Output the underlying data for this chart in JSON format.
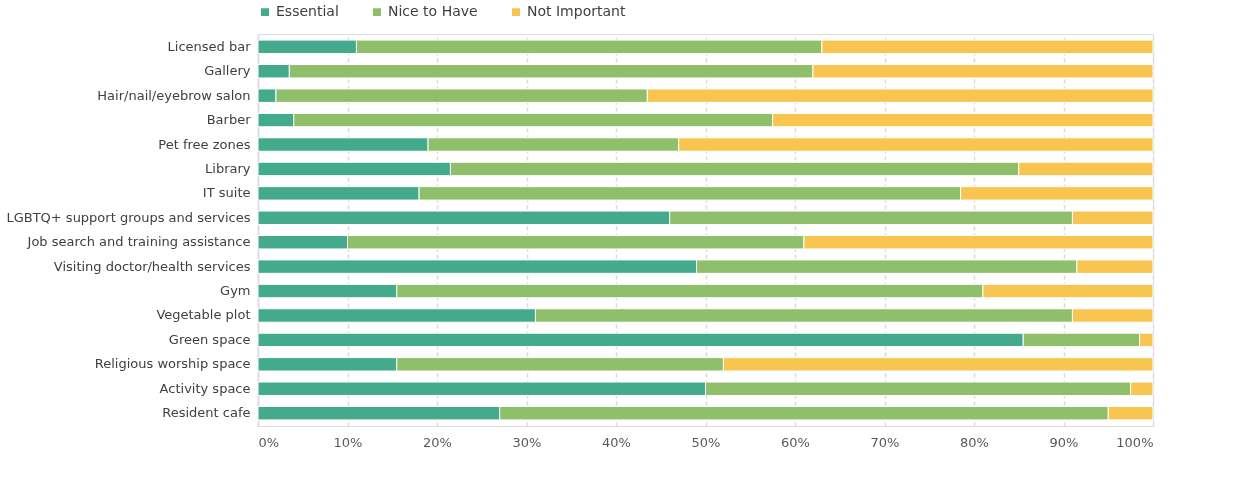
{
  "chart_data": {
    "type": "bar",
    "orientation": "horizontal",
    "stacked": true,
    "categories": [
      "Licensed bar",
      "Gallery",
      "Hair/nail/eyebrow salon",
      "Barber",
      "Pet free zones",
      "Library",
      "IT suite",
      "LGBTQ+ support groups and services",
      "Job search and training assistance",
      "Visiting doctor/health services",
      "Gym",
      "Vegetable plot",
      "Green space",
      "Religious worship space",
      "Activity space",
      "Resident cafe"
    ],
    "series": [
      {
        "name": "Essential",
        "color": "#43aa8b",
        "values": [
          11,
          3.5,
          2,
          4,
          19,
          21.5,
          18,
          46,
          10,
          49,
          15.5,
          31,
          85.5,
          15.5,
          50,
          27
        ]
      },
      {
        "name": "Nice to Have",
        "color": "#90bf6c",
        "values": [
          52,
          58.5,
          41.5,
          53.5,
          28,
          63.5,
          60.5,
          45,
          51,
          42.5,
          65.5,
          60,
          13,
          36.5,
          47.5,
          68
        ]
      },
      {
        "name": "Not Important",
        "color": "#f8c550",
        "values": [
          37,
          38,
          56.5,
          42.5,
          53,
          15,
          21.5,
          9,
          39,
          8.5,
          19,
          9,
          1.5,
          48,
          2.5,
          5
        ]
      }
    ],
    "xlim": [
      0,
      100
    ],
    "xticks": [
      {
        "value": 0,
        "label": "0%"
      },
      {
        "value": 10,
        "label": "10%"
      },
      {
        "value": 20,
        "label": "20%"
      },
      {
        "value": 30,
        "label": "30%"
      },
      {
        "value": 40,
        "label": "40%"
      },
      {
        "value": 50,
        "label": "50%"
      },
      {
        "value": 60,
        "label": "60%"
      },
      {
        "value": 70,
        "label": "70%"
      },
      {
        "value": 80,
        "label": "80%"
      },
      {
        "value": 90,
        "label": "90%"
      },
      {
        "value": 100,
        "label": "100%"
      }
    ],
    "grid": "x",
    "legend": "top"
  }
}
